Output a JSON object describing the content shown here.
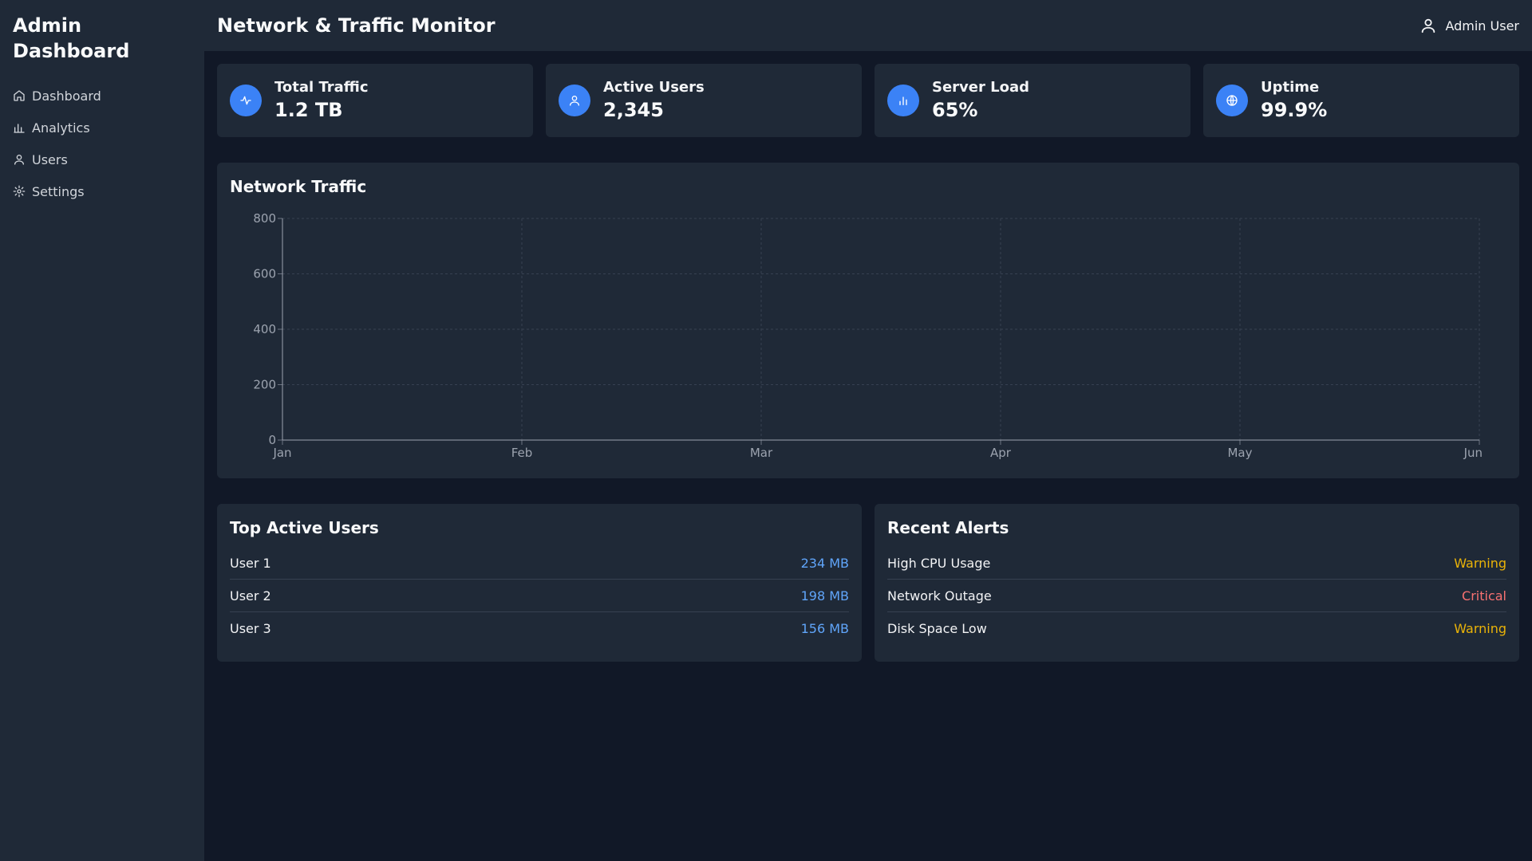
{
  "sidebar": {
    "brand": "Admin Dashboard",
    "items": [
      {
        "label": "Dashboard",
        "icon": "home-icon"
      },
      {
        "label": "Analytics",
        "icon": "bar-chart-icon"
      },
      {
        "label": "Users",
        "icon": "user-icon"
      },
      {
        "label": "Settings",
        "icon": "gear-icon"
      }
    ]
  },
  "header": {
    "title": "Network & Traffic Monitor",
    "user": "Admin User"
  },
  "stats": [
    {
      "label": "Total Traffic",
      "value": "1.2 TB",
      "icon": "activity-icon"
    },
    {
      "label": "Active Users",
      "value": "2,345",
      "icon": "user-icon"
    },
    {
      "label": "Server Load",
      "value": "65%",
      "icon": "bar-chart-icon"
    },
    {
      "label": "Uptime",
      "value": "99.9%",
      "icon": "globe-icon"
    }
  ],
  "chart_card": {
    "title": "Network Traffic"
  },
  "chart_data": {
    "type": "line",
    "title": "Network Traffic",
    "categories": [
      "Jan",
      "Feb",
      "Mar",
      "Apr",
      "May",
      "Jun"
    ],
    "series": [],
    "ylim": [
      0,
      800
    ],
    "yticks": [
      "0",
      "200",
      "400",
      "600",
      "800"
    ],
    "grid": true
  },
  "top_users": {
    "title": "Top Active Users",
    "rows": [
      {
        "name": "User 1",
        "usage": "234 MB"
      },
      {
        "name": "User 2",
        "usage": "198 MB"
      },
      {
        "name": "User 3",
        "usage": "156 MB"
      }
    ]
  },
  "alerts": {
    "title": "Recent Alerts",
    "rows": [
      {
        "name": "High CPU Usage",
        "level": "Warning",
        "color": "#eab308"
      },
      {
        "name": "Network Outage",
        "level": "Critical",
        "color": "#f87171"
      },
      {
        "name": "Disk Space Low",
        "level": "Warning",
        "color": "#eab308"
      }
    ]
  },
  "colors": {
    "accent": "#3b82f6",
    "usage": "#60a5fa",
    "background": "#111827",
    "panel": "#1f2937"
  }
}
